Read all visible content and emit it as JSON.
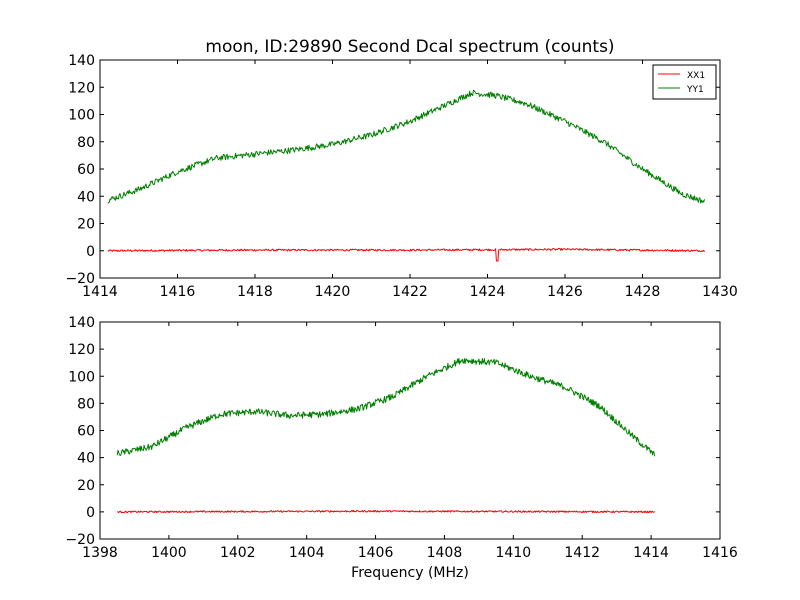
{
  "chart_data": [
    {
      "type": "line",
      "title": "moon, ID:29890 Second Dcal spectrum (counts)",
      "xlabel": "",
      "ylabel": "",
      "xlim": [
        1414,
        1430
      ],
      "ylim": [
        -20,
        140
      ],
      "x_ticks": [
        1414,
        1416,
        1418,
        1420,
        1422,
        1424,
        1426,
        1428,
        1430
      ],
      "y_ticks": [
        -20,
        0,
        20,
        40,
        60,
        80,
        100,
        120,
        140
      ],
      "x_tick_labels": [
        "1414",
        "1416",
        "1418",
        "1420",
        "1422",
        "1424",
        "1426",
        "1428",
        "1430"
      ],
      "y_tick_labels": [
        "−20",
        "0",
        "20",
        "40",
        "60",
        "80",
        "100",
        "120",
        "140"
      ],
      "legend": {
        "placement": "top-right",
        "entries": [
          "XX1",
          "YY1"
        ]
      },
      "grid": false,
      "x_range": [
        1414.2,
        1429.6
      ],
      "series": [
        {
          "name": "XX1",
          "color": "#ff0000",
          "noise": 0.7,
          "spikes": [
            {
              "x": 1424.25,
              "y": -8
            }
          ],
          "points": [
            [
              1414.2,
              0
            ],
            [
              1418,
              0.5
            ],
            [
              1422,
              0.5
            ],
            [
              1426,
              1
            ],
            [
              1429.6,
              0
            ]
          ]
        },
        {
          "name": "YY1",
          "color": "#008000",
          "noise": 2.2,
          "spikes": [],
          "points": [
            [
              1414.2,
              37
            ],
            [
              1415,
              45
            ],
            [
              1416,
              58
            ],
            [
              1417,
              68
            ],
            [
              1418,
              71
            ],
            [
              1419,
              74
            ],
            [
              1420,
              78
            ],
            [
              1421,
              85
            ],
            [
              1422,
              95
            ],
            [
              1423,
              108
            ],
            [
              1423.6,
              116
            ],
            [
              1424.2,
              114
            ],
            [
              1425,
              108
            ],
            [
              1426,
              95
            ],
            [
              1427,
              80
            ],
            [
              1428,
              60
            ],
            [
              1429,
              42
            ],
            [
              1429.6,
              36
            ]
          ]
        }
      ]
    },
    {
      "type": "line",
      "title": "",
      "xlabel": "Frequency (MHz)",
      "ylabel": "",
      "xlim": [
        1398,
        1416
      ],
      "ylim": [
        -20,
        140
      ],
      "x_ticks": [
        1398,
        1400,
        1402,
        1404,
        1406,
        1408,
        1410,
        1412,
        1414,
        1416
      ],
      "y_ticks": [
        -20,
        0,
        20,
        40,
        60,
        80,
        100,
        120,
        140
      ],
      "x_tick_labels": [
        "1398",
        "1400",
        "1402",
        "1404",
        "1406",
        "1408",
        "1410",
        "1412",
        "1414",
        "1416"
      ],
      "y_tick_labels": [
        "−20",
        "0",
        "20",
        "40",
        "60",
        "80",
        "100",
        "120",
        "140"
      ],
      "grid": false,
      "x_range": [
        1398.5,
        1414.1
      ],
      "series": [
        {
          "color": "#ff0000",
          "noise": 0.6,
          "spikes": [],
          "points": [
            [
              1398.5,
              0
            ],
            [
              1406,
              0.5
            ],
            [
              1414.1,
              0
            ]
          ]
        },
        {
          "color": "#008000",
          "noise": 2.4,
          "spikes": [],
          "points": [
            [
              1398.5,
              43
            ],
            [
              1399.5,
              48
            ],
            [
              1400.5,
              62
            ],
            [
              1401.5,
              72
            ],
            [
              1402.5,
              74
            ],
            [
              1403.5,
              71
            ],
            [
              1404.5,
              72
            ],
            [
              1405.5,
              76
            ],
            [
              1406.5,
              85
            ],
            [
              1407.5,
              100
            ],
            [
              1408.5,
              112
            ],
            [
              1409.5,
              110
            ],
            [
              1410.5,
              100
            ],
            [
              1411.5,
              92
            ],
            [
              1412.5,
              78
            ],
            [
              1413.5,
              55
            ],
            [
              1414.1,
              42
            ]
          ]
        }
      ]
    }
  ]
}
